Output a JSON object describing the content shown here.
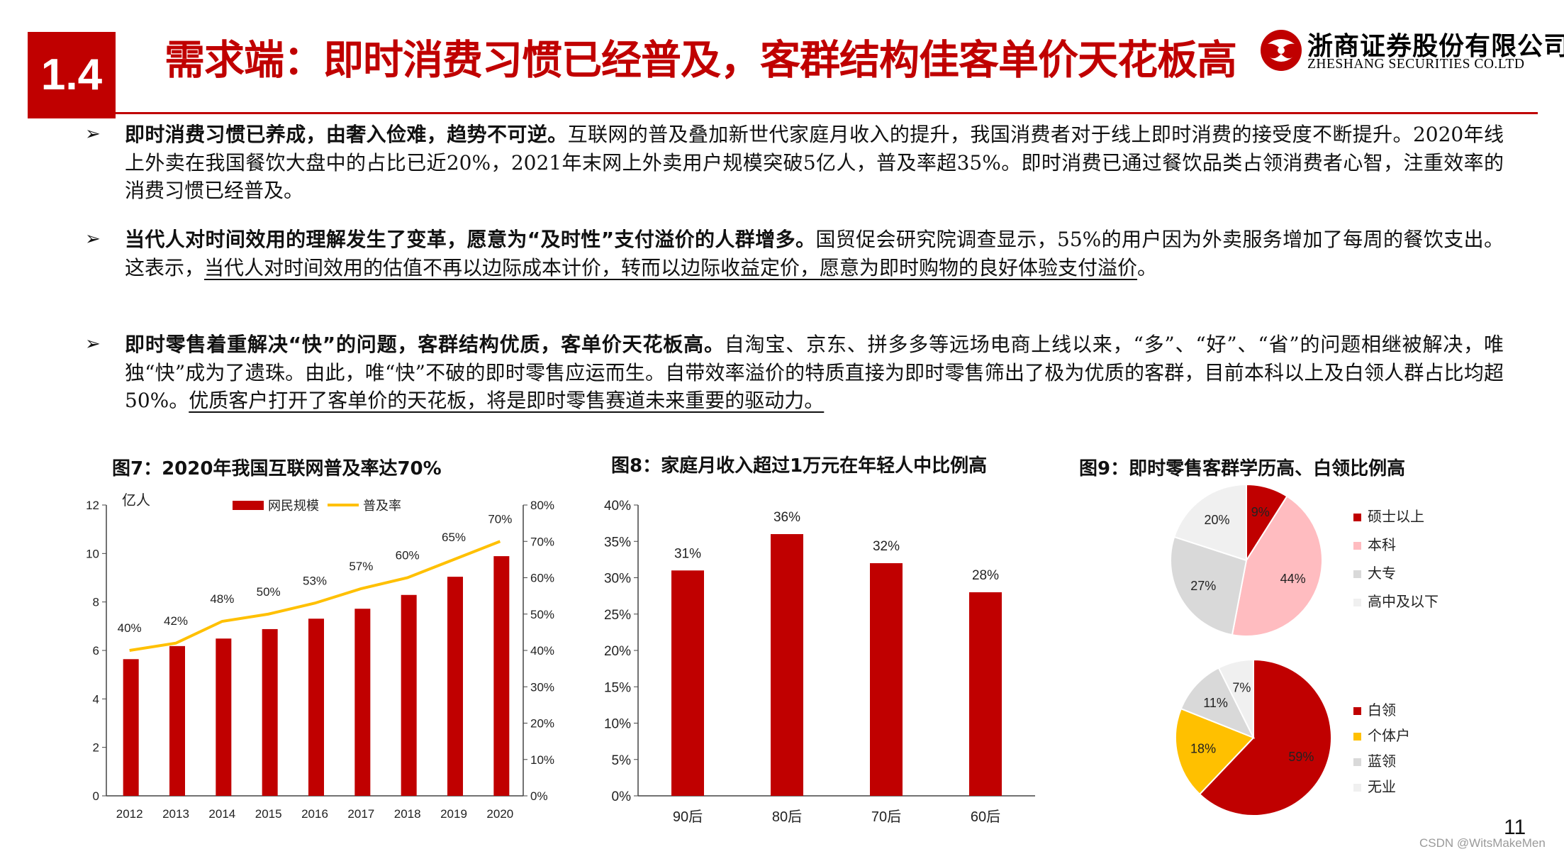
{
  "header": {
    "section_number": "1.4",
    "title": "需求端：即时消费习惯已经普及，客群结构佳客单价天花板高",
    "logo_cn": "浙商证券股份有限公司",
    "logo_en": "ZHESHANG SECURITIES CO.LTD"
  },
  "bullets": [
    {
      "lead": "即时消费习惯已养成，由奢入俭难，趋势不可逆。",
      "body": "互联网的普及叠加新世代家庭月收入的提升，我国消费者对于线上即时消费的接受度不断提升。2020年线上外卖在我国餐饮大盘中的占比已近20%，2021年末网上外卖用户规模突破5亿人，普及率超35%。即时消费已通过餐饮品类占领消费者心智，注重效率的消费习惯已经普及。",
      "underlined": "",
      "tail": ""
    },
    {
      "lead": "当代人对时间效用的理解发生了变革，愿意为“及时性”支付溢价的人群增多。",
      "body": "国贸促会研究院调查显示，55%的用户因为外卖服务增加了每周的餐饮支出。这表示，",
      "underlined": "当代人对时间效用的估值不再以边际成本计价，转而以边际收益定价，愿意为即时购物的良好体验支付溢价",
      "tail": "。"
    },
    {
      "lead": "即时零售着重解决“快”的问题，客群结构优质，客单价天花板高。",
      "body": "自淘宝、京东、拼多多等远场电商上线以来，“多”、“好”、“省”的问题相继被解决，唯独“快”成为了遗珠。由此，唯“快”不破的即时零售应运而生。自带效率溢价的特质直接为即时零售筛出了极为优质的客群，目前本科以上及白领人群占比均超50%。",
      "underlined": "优质客户打开了客单价的天花板，将是即时零售赛道未来重要的驱动力。",
      "tail": ""
    }
  ],
  "arrow_glyph": "➢",
  "figures": {
    "fig7_title": "图7：2020年我国互联网普及率达70%",
    "fig8_title": "图8：家庭月收入超过1万元在年轻人中比例高",
    "fig9_title": "图9：即时零售客群学历高、白领比例高"
  },
  "chart_data": [
    {
      "type": "bar",
      "title": "图7：2020年我国互联网普及率达70%",
      "ylabel": "亿人",
      "categories": [
        "2012",
        "2013",
        "2014",
        "2015",
        "2016",
        "2017",
        "2018",
        "2019",
        "2020"
      ],
      "series": [
        {
          "name": "网民规模",
          "type": "bar",
          "axis": "left",
          "values": [
            5.64,
            6.18,
            6.49,
            6.88,
            7.31,
            7.72,
            8.29,
            9.04,
            9.89
          ]
        },
        {
          "name": "普及率",
          "type": "line",
          "axis": "right",
          "values": [
            40,
            42,
            48,
            50,
            53,
            57,
            60,
            65,
            70
          ],
          "labels": [
            "40%",
            "42%",
            "48%",
            "50%",
            "53%",
            "57%",
            "60%",
            "65%",
            "70%"
          ]
        }
      ],
      "ylim": [
        0,
        12
      ],
      "yticks": [
        "0",
        "2",
        "4",
        "6",
        "8",
        "10",
        "12"
      ],
      "y2lim": [
        0,
        80
      ],
      "y2ticks": [
        "0%",
        "10%",
        "20%",
        "30%",
        "40%",
        "50%",
        "60%",
        "70%",
        "80%"
      ],
      "legend": "top",
      "colors": {
        "bar": "#c00000",
        "line": "#ffc000"
      }
    },
    {
      "type": "bar",
      "title": "图8：家庭月收入超过1万元在年轻人中比例高",
      "categories": [
        "90后",
        "80后",
        "70后",
        "60后"
      ],
      "values": [
        31,
        36,
        32,
        28
      ],
      "labels": [
        "31%",
        "36%",
        "32%",
        "28%"
      ],
      "ylim": [
        0,
        40
      ],
      "yticks": [
        "0%",
        "5%",
        "10%",
        "15%",
        "20%",
        "25%",
        "30%",
        "35%",
        "40%"
      ],
      "colors": {
        "bar": "#c00000"
      }
    },
    {
      "type": "pie",
      "title": "图9：即时零售客群学历高、白领比例高",
      "slices": [
        {
          "name": "硕士以上",
          "value": 9,
          "label": "9%",
          "color": "#c00000"
        },
        {
          "name": "本科",
          "value": 44,
          "label": "44%",
          "color": "#ffbcc0"
        },
        {
          "name": "大专",
          "value": 27,
          "label": "27%",
          "color": "#d9d9d9"
        },
        {
          "name": "高中及以下",
          "value": 20,
          "label": "20%",
          "color": "#f0f0f0"
        }
      ],
      "legend": "right"
    },
    {
      "type": "pie",
      "slices": [
        {
          "name": "白领",
          "value": 59,
          "label": "59%",
          "color": "#c00000"
        },
        {
          "name": "个体户",
          "value": 18,
          "label": "18%",
          "color": "#ffc000"
        },
        {
          "name": "蓝领",
          "value": 11,
          "label": "11%",
          "color": "#d9d9d9"
        },
        {
          "name": "无业",
          "value": 7,
          "label": "7%",
          "color": "#f0f0f0"
        }
      ],
      "legend": "right"
    }
  ],
  "footer": {
    "page_number": "11",
    "watermark": "CSDN @WitsMakeMen"
  }
}
